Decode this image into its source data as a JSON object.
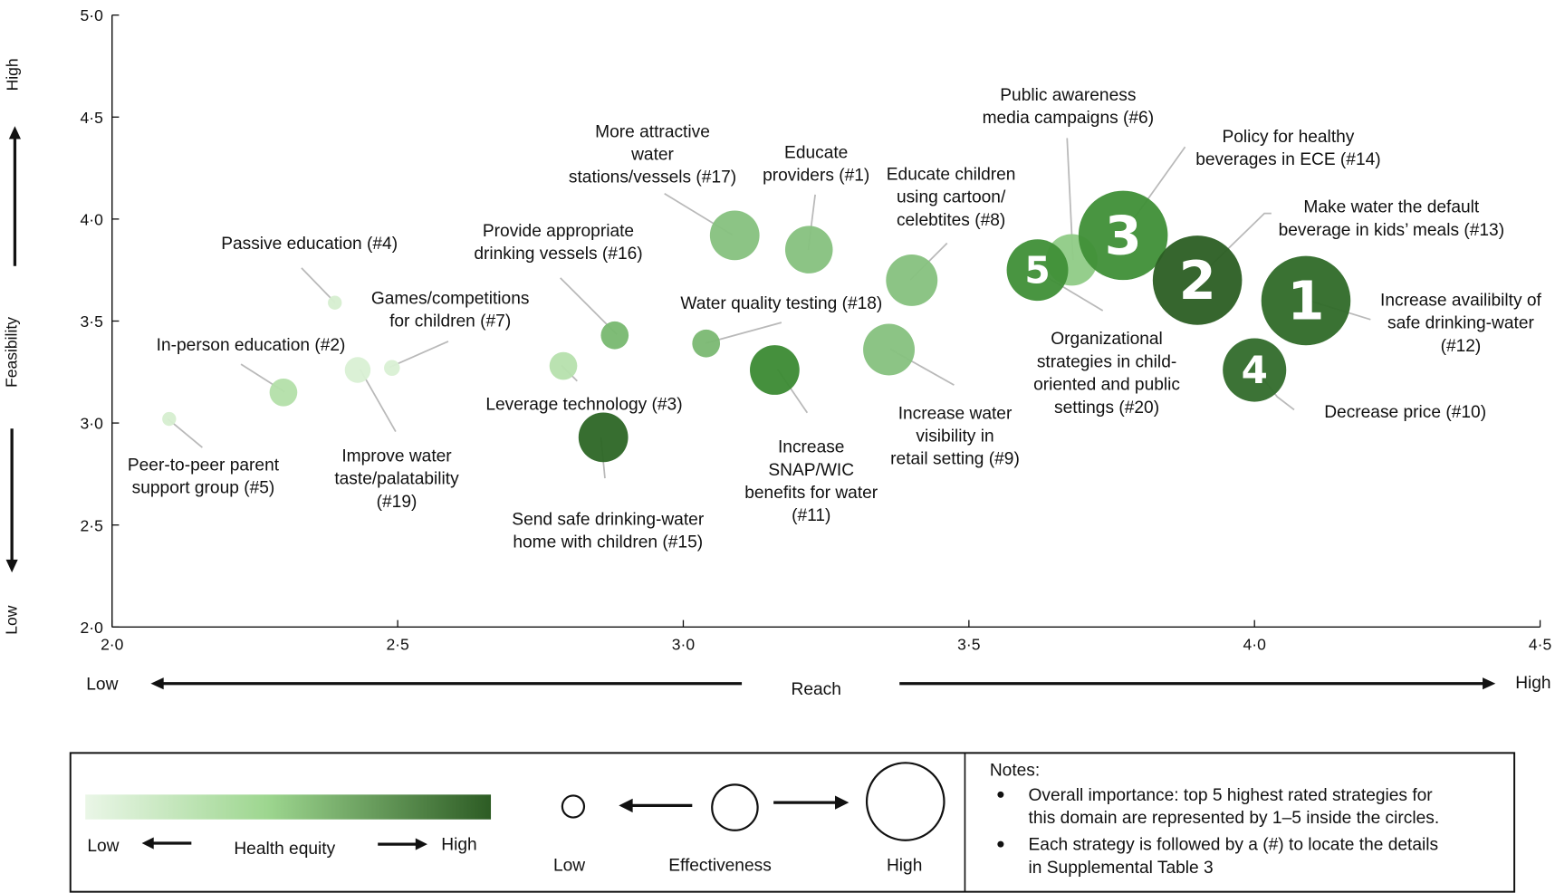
{
  "chart_data": {
    "type": "scatter",
    "subtype": "bubble",
    "xlabel": "Reach",
    "ylabel": "Feasibility",
    "xlim": [
      2.0,
      4.5
    ],
    "ylim": [
      2.0,
      5.0
    ],
    "xticks": [
      "2·0",
      "2·5",
      "3·0",
      "3·5",
      "4·0",
      "4·5"
    ],
    "yticks": [
      "2·0",
      "2·5",
      "3·0",
      "3·5",
      "4·0",
      "4·5",
      "5·0"
    ],
    "x_low": "Low",
    "x_high": "High",
    "y_low": "Low",
    "y_high": "High",
    "grid": false,
    "points": [
      {
        "id": 5,
        "label": [
          "Peer-to-peer parent",
          "support group (#5)"
        ],
        "x": 2.1,
        "y": 3.02,
        "effectiveness": 0.7,
        "equity": 0.05,
        "color": "#d6eed0"
      },
      {
        "id": 2,
        "label": [
          "In-person education (#2)"
        ],
        "x": 2.3,
        "y": 3.15,
        "effectiveness": 1.4,
        "equity": 0.25,
        "color": "#b3dfa9"
      },
      {
        "id": 4,
        "label": [
          "Passive education (#4)"
        ],
        "x": 2.39,
        "y": 3.59,
        "effectiveness": 0.7,
        "equity": 0.05,
        "color": "#d6eed0"
      },
      {
        "id": 19,
        "label": [
          "Improve water",
          "taste/palatability",
          "(#19)"
        ],
        "x": 2.43,
        "y": 3.26,
        "effectiveness": 1.3,
        "equity": 0.05,
        "color": "#d9f0d4"
      },
      {
        "id": 7,
        "label": [
          "Games/competitions",
          "for children (#7)"
        ],
        "x": 2.49,
        "y": 3.27,
        "effectiveness": 0.8,
        "equity": 0.05,
        "color": "#d9f0d4"
      },
      {
        "id": 3,
        "label": [
          "Leverage technology (#3)"
        ],
        "x": 2.79,
        "y": 3.28,
        "effectiveness": 1.4,
        "equity": 0.25,
        "color": "#b6e0ad"
      },
      {
        "id": 16,
        "label": [
          "Provide appropriate",
          "drinking vessels (#16)"
        ],
        "x": 2.88,
        "y": 3.43,
        "effectiveness": 1.4,
        "equity": 0.5,
        "color": "#78b870"
      },
      {
        "id": 15,
        "label": [
          "Send safe drinking-water",
          "home with children (#15)"
        ],
        "x": 2.86,
        "y": 2.93,
        "effectiveness": 2.5,
        "equity": 0.95,
        "color": "#2c6625"
      },
      {
        "id": 17,
        "label": [
          "More attractive",
          "water",
          "stations/vessels (#17)"
        ],
        "x": 3.09,
        "y": 3.92,
        "effectiveness": 2.5,
        "equity": 0.45,
        "color": "#86c17e"
      },
      {
        "id": 18,
        "label": [
          "Water quality testing (#18)"
        ],
        "x": 3.04,
        "y": 3.39,
        "effectiveness": 1.4,
        "equity": 0.5,
        "color": "#7ab872"
      },
      {
        "id": 1,
        "label": [
          "Educate",
          "providers (#1)"
        ],
        "x": 3.22,
        "y": 3.85,
        "effectiveness": 2.4,
        "equity": 0.45,
        "color": "#86c17e"
      },
      {
        "id": 11,
        "label": [
          "Increase",
          "SNAP/WIC",
          "benefits for water",
          "(#11)"
        ],
        "x": 3.16,
        "y": 3.26,
        "effectiveness": 2.5,
        "equity": 0.8,
        "color": "#3b8a33"
      },
      {
        "id": 8,
        "label": [
          "Educate children",
          "using cartoon/",
          "celebtites (#8)"
        ],
        "x": 3.4,
        "y": 3.7,
        "effectiveness": 2.6,
        "equity": 0.45,
        "color": "#86c17e"
      },
      {
        "id": 9,
        "label": [
          "Increase water",
          "visibility in",
          "retail setting (#9)"
        ],
        "x": 3.36,
        "y": 3.36,
        "effectiveness": 2.6,
        "equity": 0.45,
        "color": "#86c17e"
      },
      {
        "id": 6,
        "label": [
          "Public awareness",
          "media campaigns (#6)"
        ],
        "x": 3.68,
        "y": 3.8,
        "effectiveness": 2.6,
        "equity": 0.4,
        "color": "#8fcb86"
      },
      {
        "id": 20,
        "label": [
          "Organizational",
          "strategies in child-",
          "oriented and public",
          "settings (#20)"
        ],
        "x": 3.62,
        "y": 3.75,
        "effectiveness": 3.1,
        "equity": 0.8,
        "color": "#3f8f37",
        "rank": "5"
      },
      {
        "id": 14,
        "label": [
          "Policy for healthy",
          "beverages in ECE (#14)"
        ],
        "x": 3.77,
        "y": 3.92,
        "effectiveness": 4.5,
        "equity": 0.8,
        "color": "#3f8f37",
        "rank": "3"
      },
      {
        "id": 13,
        "label": [
          "Make water the default",
          "beverage in kids’ meals (#13)"
        ],
        "x": 3.9,
        "y": 3.7,
        "effectiveness": 4.5,
        "equity": 1.0,
        "color": "#2b5e23",
        "rank": "2"
      },
      {
        "id": 12,
        "label": [
          "Increase availibilty of",
          "safe drinking-water",
          "(#12)"
        ],
        "x": 4.09,
        "y": 3.6,
        "effectiveness": 4.5,
        "equity": 0.95,
        "color": "#2f6a28",
        "rank": "1"
      },
      {
        "id": 10,
        "label": [
          "Decrease price (#10)"
        ],
        "x": 4.0,
        "y": 3.26,
        "effectiveness": 3.2,
        "equity": 0.95,
        "color": "#326c2b",
        "rank": "4"
      }
    ],
    "legend": {
      "equity_title": "Health equity",
      "equity_low": "Low",
      "equity_high": "High",
      "equity_colors": [
        "#eaf6e7",
        "#9dd68f",
        "#2d5c24"
      ],
      "eff_title": "Effectiveness",
      "eff_low": "Low",
      "eff_high": "High",
      "notes_title": "Notes:",
      "notes": [
        [
          "Overall importance: top 5 highest rated strategies for",
          "this domain are represented by 1–5 inside the circles."
        ],
        [
          "Each strategy is followed by a (#) to locate the details",
          "in Supplemental Table 3"
        ]
      ]
    }
  }
}
